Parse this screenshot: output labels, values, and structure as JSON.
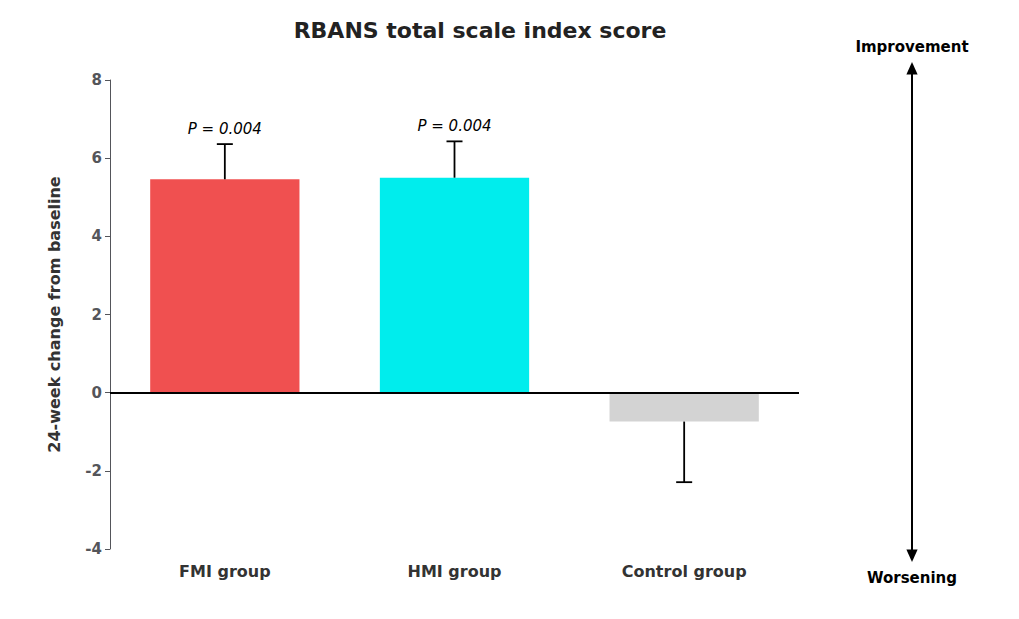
{
  "chart_data": {
    "type": "bar",
    "title": "RBANS total scale index score",
    "ylabel": "24-week change from baseline",
    "categories": [
      "FMI group",
      "HMI group",
      "Control group"
    ],
    "values": [
      5.46,
      5.5,
      -0.74
    ],
    "errors": [
      0.9,
      0.93,
      1.55
    ],
    "colors": [
      "#F05050",
      "#00EDED",
      "#D3D3D3"
    ],
    "annotations": [
      "P = 0.004",
      "P = 0.004",
      null
    ],
    "arrow_labels": [
      "Improvement",
      "Worsening"
    ],
    "ylim": [
      -4,
      8
    ],
    "yticks": [
      -4,
      -2,
      0,
      2,
      4,
      6,
      8
    ],
    "grid": false
  }
}
